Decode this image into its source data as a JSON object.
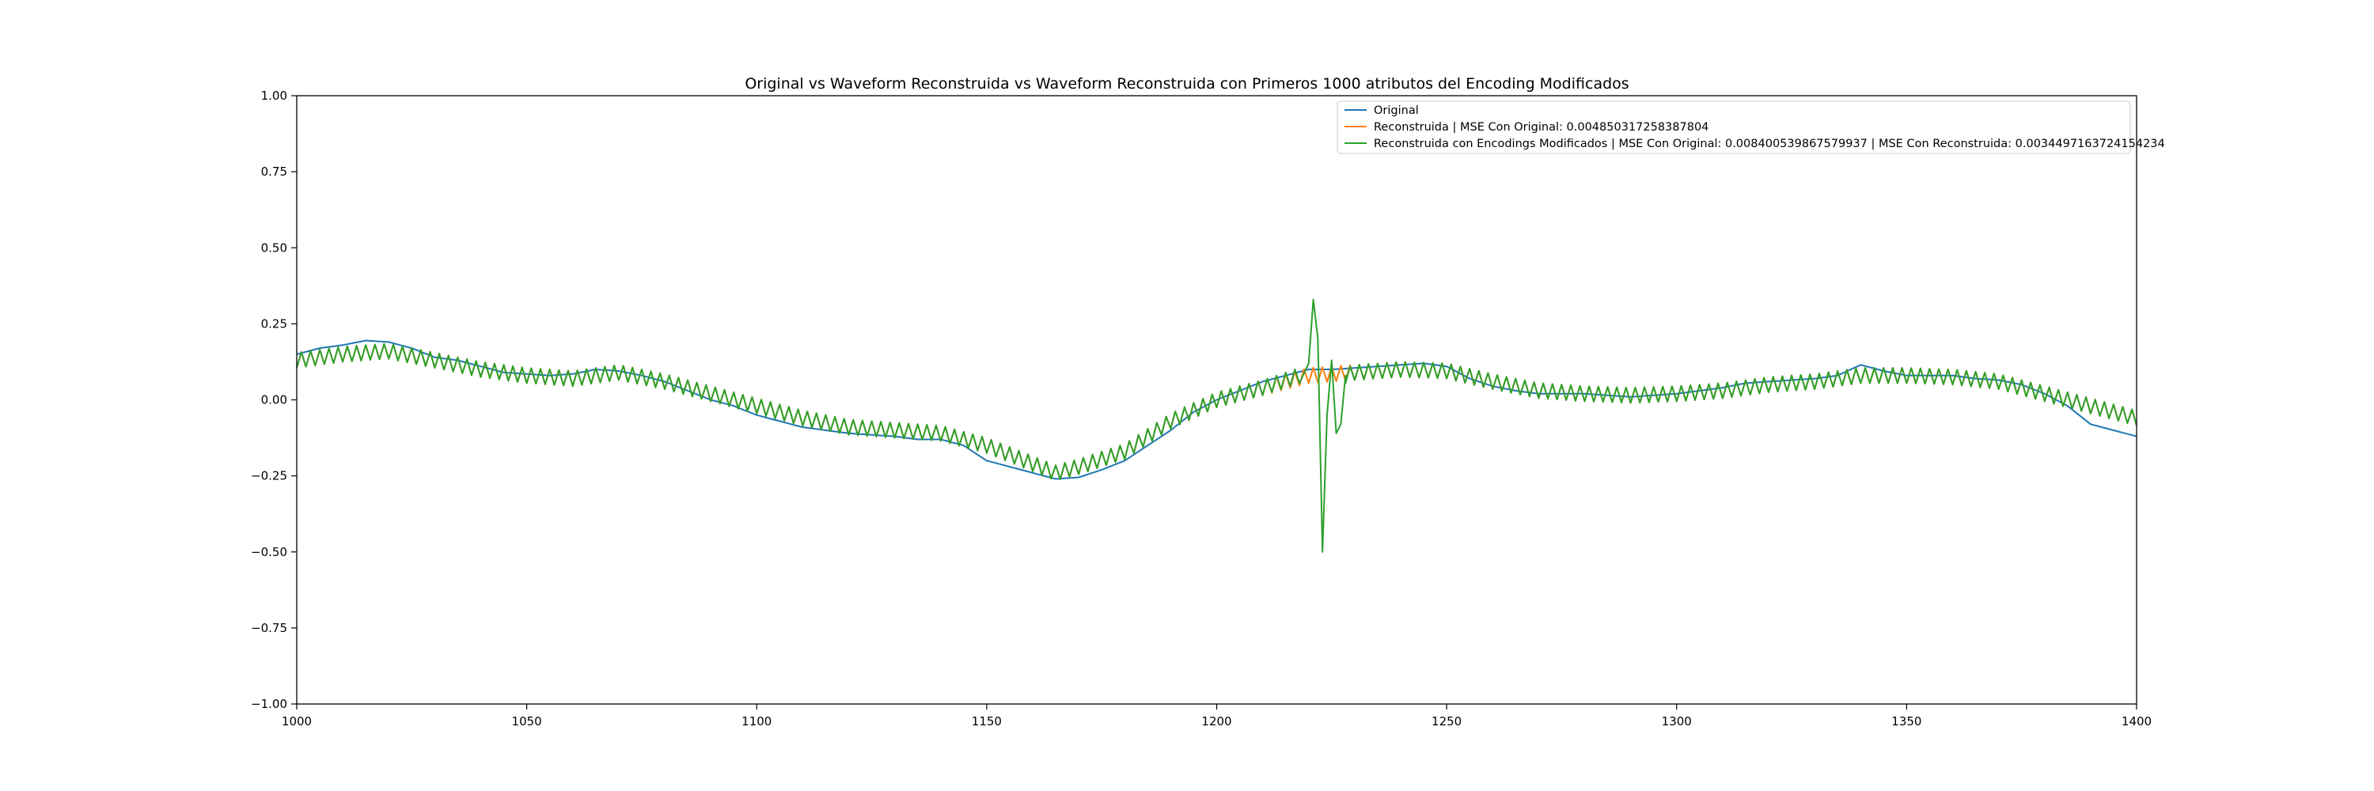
{
  "chart_data": {
    "type": "line",
    "title": "Original vs Waveform Reconstruida vs Waveform Reconstruida con Primeros 1000 atributos del Encoding Modificados",
    "xlabel": "",
    "ylabel": "",
    "xlim": [
      1000,
      1400
    ],
    "ylim": [
      -1.0,
      1.0
    ],
    "x_ticks": [
      1000,
      1050,
      1100,
      1150,
      1200,
      1250,
      1300,
      1350,
      1400
    ],
    "y_ticks": [
      -1.0,
      -0.75,
      -0.5,
      -0.25,
      0.0,
      0.25,
      0.5,
      0.75,
      1.0
    ],
    "x_tick_labels": [
      "1000",
      "1050",
      "1100",
      "1150",
      "1200",
      "1250",
      "1300",
      "1350",
      "1400"
    ],
    "y_tick_labels": [
      "−1.00",
      "−0.75",
      "−0.50",
      "−0.25",
      "0.00",
      "0.25",
      "0.50",
      "0.75",
      "1.00"
    ],
    "grid": false,
    "legend_position": "top-right",
    "series": [
      {
        "name": "Original",
        "color": "#1f77b4",
        "oscillation_amplitude": 0,
        "x": [
          1000,
          1005,
          1010,
          1015,
          1020,
          1025,
          1030,
          1035,
          1040,
          1045,
          1050,
          1055,
          1060,
          1065,
          1070,
          1075,
          1080,
          1085,
          1090,
          1095,
          1100,
          1105,
          1110,
          1115,
          1120,
          1125,
          1130,
          1135,
          1140,
          1145,
          1150,
          1155,
          1160,
          1165,
          1170,
          1175,
          1180,
          1185,
          1190,
          1195,
          1200,
          1205,
          1210,
          1215,
          1220,
          1225,
          1230,
          1235,
          1240,
          1245,
          1250,
          1255,
          1260,
          1265,
          1270,
          1275,
          1280,
          1285,
          1290,
          1295,
          1300,
          1305,
          1310,
          1315,
          1320,
          1325,
          1330,
          1335,
          1340,
          1345,
          1350,
          1355,
          1360,
          1365,
          1370,
          1375,
          1380,
          1385,
          1390,
          1395,
          1400
        ],
        "y": [
          0.15,
          0.17,
          0.18,
          0.195,
          0.19,
          0.17,
          0.14,
          0.13,
          0.11,
          0.09,
          0.085,
          0.08,
          0.085,
          0.1,
          0.095,
          0.08,
          0.06,
          0.03,
          0.0,
          -0.02,
          -0.05,
          -0.07,
          -0.09,
          -0.1,
          -0.11,
          -0.115,
          -0.12,
          -0.13,
          -0.13,
          -0.15,
          -0.2,
          -0.22,
          -0.24,
          -0.26,
          -0.255,
          -0.23,
          -0.2,
          -0.15,
          -0.1,
          -0.04,
          0.0,
          0.03,
          0.06,
          0.08,
          0.1,
          0.1,
          0.105,
          0.11,
          0.115,
          0.12,
          0.11,
          0.07,
          0.045,
          0.03,
          0.02,
          0.02,
          0.02,
          0.015,
          0.01,
          0.015,
          0.02,
          0.03,
          0.04,
          0.055,
          0.06,
          0.065,
          0.07,
          0.08,
          0.115,
          0.095,
          0.08,
          0.08,
          0.08,
          0.07,
          0.065,
          0.05,
          0.02,
          -0.02,
          -0.08,
          -0.1,
          -0.12
        ]
      },
      {
        "name": "Reconstruida | MSE Con Original: 0.004850317258387804",
        "color": "#ff7f0e",
        "oscillation_amplitude": 0.025,
        "x": [
          1000,
          1010,
          1020,
          1030,
          1040,
          1050,
          1060,
          1070,
          1080,
          1090,
          1100,
          1110,
          1120,
          1130,
          1140,
          1150,
          1160,
          1165,
          1170,
          1180,
          1190,
          1200,
          1210,
          1220,
          1230,
          1240,
          1250,
          1260,
          1270,
          1280,
          1290,
          1300,
          1310,
          1320,
          1330,
          1340,
          1350,
          1360,
          1370,
          1380,
          1390,
          1400
        ],
        "y": [
          0.13,
          0.15,
          0.16,
          0.13,
          0.1,
          0.08,
          0.07,
          0.09,
          0.06,
          0.02,
          -0.02,
          -0.06,
          -0.09,
          -0.1,
          -0.11,
          -0.15,
          -0.21,
          -0.24,
          -0.22,
          -0.17,
          -0.07,
          0.0,
          0.04,
          0.08,
          0.09,
          0.1,
          0.095,
          0.06,
          0.03,
          0.02,
          0.015,
          0.02,
          0.03,
          0.05,
          0.06,
          0.08,
          0.08,
          0.075,
          0.06,
          0.02,
          -0.02,
          -0.06
        ]
      },
      {
        "name": "Reconstruida con Encodings Modificados | MSE Con Original: 0.008400539867579937 | MSE Con Reconstruida: 0.0034497163724154234",
        "color": "#2ca02c",
        "oscillation_amplitude": 0.025,
        "spike": {
          "x": [
            1218,
            1220,
            1221,
            1222,
            1223,
            1224,
            1225,
            1226,
            1227,
            1228
          ],
          "y": [
            0.08,
            0.12,
            0.33,
            0.2,
            -0.5,
            -0.05,
            0.13,
            -0.11,
            -0.08,
            0.08
          ]
        },
        "x": [
          1000,
          1010,
          1020,
          1030,
          1040,
          1050,
          1060,
          1070,
          1080,
          1090,
          1100,
          1110,
          1120,
          1130,
          1140,
          1150,
          1160,
          1165,
          1170,
          1180,
          1190,
          1200,
          1210,
          1218,
          1228,
          1230,
          1240,
          1250,
          1260,
          1270,
          1280,
          1290,
          1300,
          1310,
          1320,
          1330,
          1340,
          1350,
          1360,
          1370,
          1380,
          1390,
          1400
        ],
        "y": [
          0.13,
          0.15,
          0.16,
          0.13,
          0.1,
          0.08,
          0.07,
          0.09,
          0.06,
          0.02,
          -0.02,
          -0.06,
          -0.09,
          -0.1,
          -0.11,
          -0.15,
          -0.21,
          -0.24,
          -0.22,
          -0.17,
          -0.07,
          0.0,
          0.04,
          0.08,
          0.08,
          0.09,
          0.1,
          0.095,
          0.06,
          0.03,
          0.02,
          0.015,
          0.02,
          0.03,
          0.05,
          0.06,
          0.08,
          0.08,
          0.075,
          0.06,
          0.02,
          -0.02,
          -0.06
        ]
      }
    ]
  }
}
